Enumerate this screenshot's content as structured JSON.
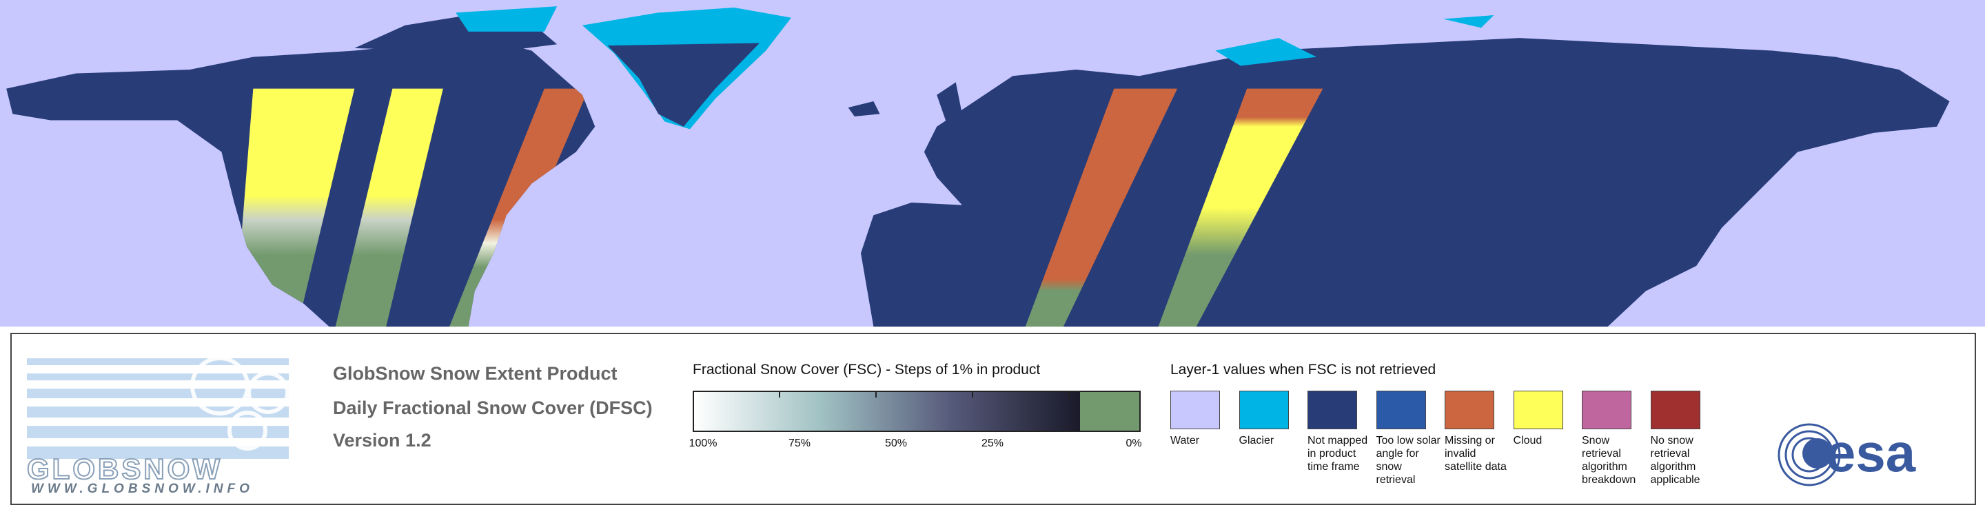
{
  "logo": {
    "name": "GLOBSNOW",
    "url": "WWW.GLOBSNOW.INFO"
  },
  "product": {
    "lines": [
      "GlobSnow Snow Extent Product",
      "Daily Fractional Snow Cover (DFSC)",
      "Version 1.2"
    ]
  },
  "fsc_scale": {
    "title": "Fractional Snow Cover (FSC) - Steps of 1% in product",
    "labels": [
      "100%",
      "75%",
      "50%",
      "25%",
      "0%"
    ],
    "gradient_colors": [
      "#ffffff",
      "#9fc0c2",
      "#565a7a",
      "#1a1a2a"
    ],
    "zero_color": "#739a6e"
  },
  "layer1": {
    "title": "Layer-1 values when FSC is not retrieved",
    "classes": [
      {
        "label": "Water",
        "color": "#c8c8ff"
      },
      {
        "label": "Glacier",
        "color": "#00b4e6"
      },
      {
        "label": "Not mapped in product time frame",
        "color": "#283c78"
      },
      {
        "label": "Too low solar angle for snow retrieval",
        "color": "#2a5aa8"
      },
      {
        "label": "Missing or invalid satellite data",
        "color": "#cc6640"
      },
      {
        "label": "Cloud",
        "color": "#ffff5a"
      },
      {
        "label": "Snow retrieval algorithm breakdown",
        "color": "#c0669e"
      },
      {
        "label": "No snow retrieval algorithm applicable",
        "color": "#a03030"
      }
    ]
  },
  "agency": "esa"
}
